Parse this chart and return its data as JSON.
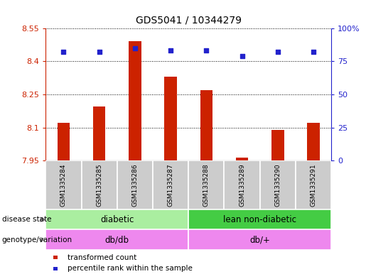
{
  "title": "GDS5041 / 10344279",
  "samples": [
    "GSM1335284",
    "GSM1335285",
    "GSM1335286",
    "GSM1335287",
    "GSM1335288",
    "GSM1335289",
    "GSM1335290",
    "GSM1335291"
  ],
  "transformed_counts": [
    8.12,
    8.195,
    8.49,
    8.33,
    8.27,
    7.965,
    8.09,
    8.12
  ],
  "percentile_ranks": [
    82,
    82,
    85,
    83,
    83,
    79,
    82,
    82
  ],
  "ylim_left": [
    7.95,
    8.55
  ],
  "ylim_right": [
    0,
    100
  ],
  "yticks_left": [
    7.95,
    8.1,
    8.25,
    8.4,
    8.55
  ],
  "yticks_right": [
    0,
    25,
    50,
    75,
    100
  ],
  "bar_color": "#cc2200",
  "dot_color": "#2222cc",
  "background_color": "#ffffff",
  "plot_bg_color": "#ffffff",
  "grid_color": "#000000",
  "sample_box_color": "#cccccc",
  "disease_state_groups": [
    {
      "label": "diabetic",
      "start": 0,
      "end": 4,
      "color": "#aaeea0"
    },
    {
      "label": "lean non-diabetic",
      "start": 4,
      "end": 8,
      "color": "#44cc44"
    }
  ],
  "genotype_groups": [
    {
      "label": "db/db",
      "start": 0,
      "end": 4,
      "color": "#ee88ee"
    },
    {
      "label": "db/+",
      "start": 4,
      "end": 8,
      "color": "#ee88ee"
    }
  ],
  "legend_items": [
    {
      "label": "transformed count",
      "color": "#cc2200"
    },
    {
      "label": "percentile rank within the sample",
      "color": "#2222cc"
    }
  ],
  "left_tick_color": "#cc2200",
  "right_tick_color": "#2222cc",
  "tick_fontsize": 8,
  "title_fontsize": 10,
  "bar_width": 0.35
}
